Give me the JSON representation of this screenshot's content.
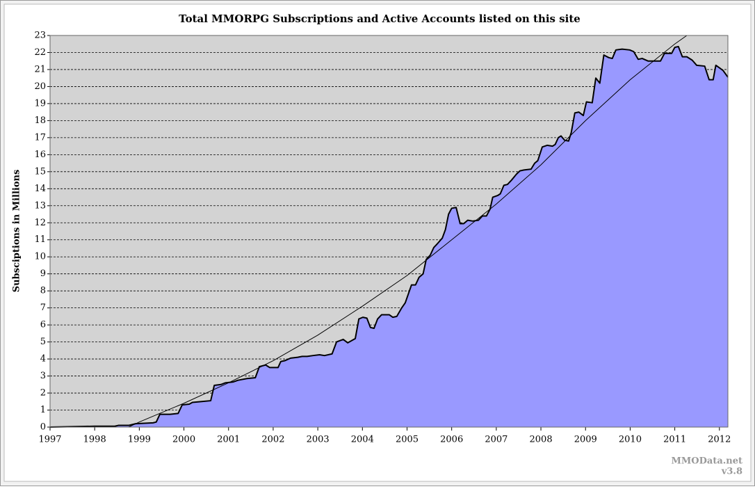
{
  "chart_data": {
    "type": "area",
    "title": "Total MMORPG Subscriptions and Active Accounts listed on this site",
    "y_label": "Subsciptions in Millions",
    "footer": [
      "MMOData.net",
      "v3.8"
    ],
    "xlim": [
      1997,
      2012.19
    ],
    "ylim": [
      0,
      23
    ],
    "xticks": [
      1997,
      1998,
      1999,
      2000,
      2001,
      2002,
      2003,
      2004,
      2005,
      2006,
      2007,
      2008,
      2009,
      2010,
      2011,
      2012
    ],
    "yticks": [
      0,
      1,
      2,
      3,
      4,
      5,
      6,
      7,
      8,
      9,
      10,
      11,
      12,
      13,
      14,
      15,
      16,
      17,
      18,
      19,
      20,
      21,
      22,
      23
    ],
    "grid": true,
    "series": [
      {
        "color": "#9999ff",
        "x": [
          1997.0,
          1998.0,
          1998.45,
          1998.53,
          1998.76,
          1998.92,
          1999.31,
          1999.38,
          1999.46,
          1999.69,
          1999.87,
          1999.96,
          2000.12,
          2000.19,
          2000.4,
          2000.6,
          2000.68,
          2000.83,
          2000.93,
          2001.1,
          2001.21,
          2001.41,
          2001.6,
          2001.69,
          2001.83,
          2001.92,
          2002.11,
          2002.17,
          2002.26,
          2002.39,
          2002.55,
          2002.65,
          2002.76,
          2002.89,
          2003.04,
          2003.15,
          2003.32,
          2003.42,
          2003.57,
          2003.67,
          2003.84,
          2003.92,
          2004.01,
          2004.1,
          2004.18,
          2004.26,
          2004.34,
          2004.43,
          2004.6,
          2004.68,
          2004.77,
          2004.88,
          2004.96,
          2005.1,
          2005.19,
          2005.27,
          2005.36,
          2005.43,
          2005.52,
          2005.6,
          2005.69,
          2005.79,
          2005.86,
          2005.93,
          2006.0,
          2006.1,
          2006.19,
          2006.27,
          2006.36,
          2006.47,
          2006.6,
          2006.69,
          2006.78,
          2006.86,
          2006.92,
          2007.03,
          2007.09,
          2007.17,
          2007.25,
          2007.34,
          2007.45,
          2007.53,
          2007.62,
          2007.78,
          2007.86,
          2007.93,
          2008.03,
          2008.14,
          2008.26,
          2008.32,
          2008.39,
          2008.45,
          2008.53,
          2008.62,
          2008.68,
          2008.76,
          2008.85,
          2008.95,
          2009.02,
          2009.15,
          2009.23,
          2009.32,
          2009.41,
          2009.52,
          2009.6,
          2009.68,
          2009.82,
          2009.99,
          2010.08,
          2010.18,
          2010.27,
          2010.4,
          2010.52,
          2010.68,
          2010.77,
          2010.93,
          2011.0,
          2011.08,
          2011.17,
          2011.27,
          2011.39,
          2011.49,
          2011.67,
          2011.77,
          2011.86,
          2011.92,
          2012.08,
          2012.19
        ],
        "values": [
          0,
          0.05,
          0.05,
          0.1,
          0.1,
          0.2,
          0.25,
          0.3,
          0.75,
          0.75,
          0.8,
          1.3,
          1.35,
          1.45,
          1.5,
          1.55,
          2.45,
          2.5,
          2.6,
          2.65,
          2.75,
          2.85,
          2.9,
          3.55,
          3.65,
          3.5,
          3.5,
          3.85,
          3.9,
          4.05,
          4.1,
          4.15,
          4.15,
          4.2,
          4.25,
          4.2,
          4.3,
          5.0,
          5.15,
          4.95,
          5.2,
          6.35,
          6.45,
          6.4,
          5.85,
          5.8,
          6.35,
          6.6,
          6.6,
          6.45,
          6.5,
          7.0,
          7.3,
          8.35,
          8.35,
          8.8,
          9.0,
          9.85,
          10.1,
          10.55,
          10.8,
          11.1,
          11.6,
          12.5,
          12.85,
          12.9,
          11.95,
          11.95,
          12.15,
          12.1,
          12.15,
          12.4,
          12.4,
          12.8,
          13.5,
          13.6,
          13.7,
          14.2,
          14.25,
          14.5,
          14.85,
          15.05,
          15.1,
          15.15,
          15.5,
          15.65,
          16.45,
          16.55,
          16.5,
          16.6,
          17.0,
          17.1,
          16.85,
          16.8,
          17.3,
          18.45,
          18.5,
          18.3,
          19.1,
          19.05,
          20.5,
          20.2,
          21.85,
          21.7,
          21.65,
          22.15,
          22.2,
          22.15,
          22.05,
          21.6,
          21.65,
          21.5,
          21.5,
          21.5,
          21.95,
          21.95,
          22.3,
          22.35,
          21.75,
          21.75,
          21.55,
          21.25,
          21.2,
          20.4,
          20.4,
          21.25,
          20.95,
          20.55
        ]
      }
    ],
    "trendline": {
      "color": "#000000",
      "x": [
        1998.76,
        1999,
        2000,
        2001,
        2002,
        2003,
        2004,
        2005,
        2006,
        2007,
        2008,
        2009,
        2010,
        2011,
        2011.27
      ],
      "values": [
        0,
        0.3,
        1.4,
        2.6,
        3.9,
        5.4,
        7.1,
        8.9,
        11.0,
        13.1,
        15.4,
        18.0,
        20.4,
        22.5,
        23
      ]
    }
  }
}
